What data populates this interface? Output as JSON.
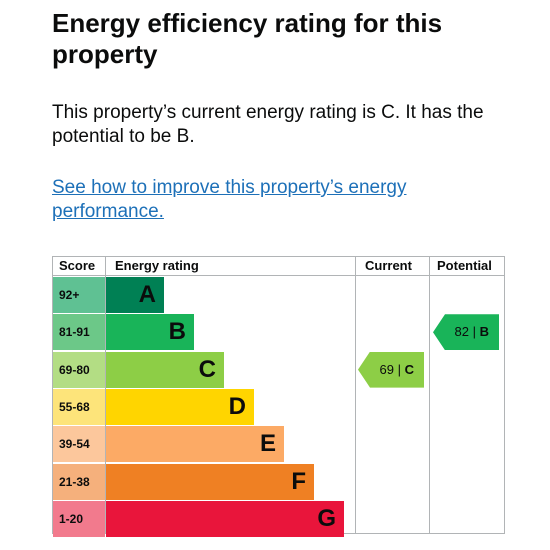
{
  "heading": "Energy efficiency rating for this property",
  "summary": "This property’s current energy rating is C. It has the potential to be B.",
  "improve_link": "See how to improve this property’s energy performance.",
  "table": {
    "headers": {
      "score": "Score",
      "rating": "Energy rating",
      "current": "Current",
      "potential": "Potential"
    },
    "bands": [
      {
        "score": "92+",
        "letter": "A",
        "color": "#008054",
        "score_bg": "#5fc193"
      },
      {
        "score": "81-91",
        "letter": "B",
        "color": "#19b459",
        "score_bg": "#6cc888"
      },
      {
        "score": "69-80",
        "letter": "C",
        "color": "#8dce46",
        "score_bg": "#b3dd84"
      },
      {
        "score": "55-68",
        "letter": "D",
        "color": "#ffd500",
        "score_bg": "#fde47a"
      },
      {
        "score": "39-54",
        "letter": "E",
        "color": "#fcaa65",
        "score_bg": "#fcc79c"
      },
      {
        "score": "21-38",
        "letter": "F",
        "color": "#ef8023",
        "score_bg": "#f5b07c"
      },
      {
        "score": "1-20",
        "letter": "G",
        "color": "#e9153b",
        "score_bg": "#f27a8d"
      }
    ],
    "current": {
      "value": "69",
      "sep": "|",
      "letter": "C",
      "color": "#8dce46"
    },
    "potential": {
      "value": "82",
      "sep": "|",
      "letter": "B",
      "color": "#19b459"
    }
  }
}
